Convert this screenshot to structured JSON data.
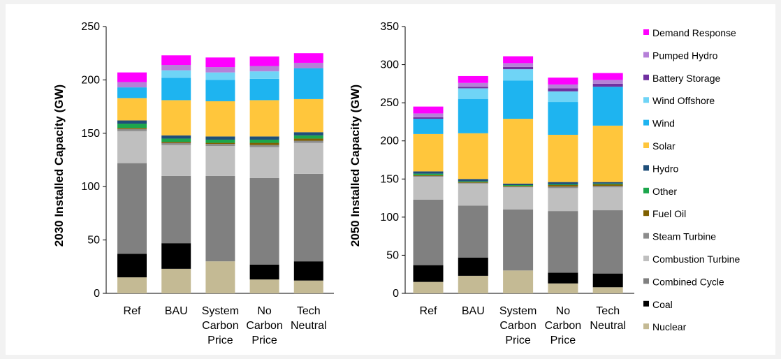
{
  "legend": {
    "placement": "right",
    "items": [
      {
        "name": "Demand Response",
        "color": "#ff00ff"
      },
      {
        "name": "Pumped Hydro",
        "color": "#b680d8"
      },
      {
        "name": "Battery Storage",
        "color": "#7030a0"
      },
      {
        "name": "Wind Offshore",
        "color": "#6fd4f6"
      },
      {
        "name": "Wind",
        "color": "#1eb4f0"
      },
      {
        "name": "Solar",
        "color": "#ffc63c"
      },
      {
        "name": "Hydro",
        "color": "#1f4e79"
      },
      {
        "name": "Other",
        "color": "#1ca64c"
      },
      {
        "name": "Fuel Oil",
        "color": "#7f6000"
      },
      {
        "name": "Steam Turbine",
        "color": "#8c8c8c"
      },
      {
        "name": "Combustion Turbine",
        "color": "#bfbfbf"
      },
      {
        "name": "Combined Cycle",
        "color": "#808080"
      },
      {
        "name": "Coal",
        "color": "#000000"
      },
      {
        "name": "Nuclear",
        "color": "#c4ba94"
      }
    ]
  },
  "chart_data": [
    {
      "type": "bar",
      "stacked": true,
      "ylabel": "2030 Installed Capacity (GW)",
      "ylim": [
        0,
        250
      ],
      "yticks": [
        0,
        50,
        100,
        150,
        200,
        250
      ],
      "grid": false,
      "categories": [
        [
          "Ref"
        ],
        [
          "BAU"
        ],
        [
          "System",
          "Carbon",
          "Price"
        ],
        [
          "No",
          "Carbon",
          "Price"
        ],
        [
          "Tech",
          "Neutral"
        ]
      ],
      "series": [
        {
          "name": "Nuclear",
          "values": [
            15,
            23,
            30,
            13,
            12
          ]
        },
        {
          "name": "Coal",
          "values": [
            22,
            24,
            0,
            14,
            18
          ]
        },
        {
          "name": "Combined Cycle",
          "values": [
            85,
            63,
            80,
            81,
            82
          ]
        },
        {
          "name": "Combustion Turbine",
          "values": [
            30,
            29,
            28,
            29,
            29
          ]
        },
        {
          "name": "Steam Turbine",
          "values": [
            2,
            2,
            2,
            2,
            2
          ]
        },
        {
          "name": "Fuel Oil",
          "values": [
            1,
            1,
            1,
            2,
            2
          ]
        },
        {
          "name": "Other",
          "values": [
            4,
            3,
            3,
            3,
            3
          ]
        },
        {
          "name": "Hydro",
          "values": [
            3,
            3,
            3,
            3,
            3
          ]
        },
        {
          "name": "Solar",
          "values": [
            21,
            33,
            33,
            34,
            31
          ]
        },
        {
          "name": "Wind",
          "values": [
            10,
            21,
            20,
            20,
            29
          ]
        },
        {
          "name": "Wind Offshore",
          "values": [
            0,
            7,
            7,
            7,
            0
          ]
        },
        {
          "name": "Battery Storage",
          "values": [
            0,
            0,
            0,
            0,
            0
          ]
        },
        {
          "name": "Pumped Hydro",
          "values": [
            5,
            5,
            5,
            5,
            5
          ]
        },
        {
          "name": "Demand Response",
          "values": [
            9,
            9,
            9,
            9,
            9
          ]
        }
      ]
    },
    {
      "type": "bar",
      "stacked": true,
      "ylabel": "2050 Installed Capacity (GW)",
      "ylim": [
        0,
        350
      ],
      "yticks": [
        0,
        50,
        100,
        150,
        200,
        250,
        300,
        350
      ],
      "grid": false,
      "categories": [
        [
          "Ref"
        ],
        [
          "BAU"
        ],
        [
          "System",
          "Carbon",
          "Price"
        ],
        [
          "No",
          "Carbon",
          "Price"
        ],
        [
          "Tech",
          "Neutral"
        ]
      ],
      "series": [
        {
          "name": "Nuclear",
          "values": [
            15,
            23,
            30,
            13,
            8
          ]
        },
        {
          "name": "Coal",
          "values": [
            22,
            24,
            0,
            14,
            18
          ]
        },
        {
          "name": "Combined Cycle",
          "values": [
            86,
            68,
            80,
            81,
            83
          ]
        },
        {
          "name": "Combustion Turbine",
          "values": [
            30,
            29,
            29,
            30,
            30
          ]
        },
        {
          "name": "Steam Turbine",
          "values": [
            1,
            1,
            1,
            2,
            2
          ]
        },
        {
          "name": "Fuel Oil",
          "values": [
            1,
            1,
            1,
            2,
            2
          ]
        },
        {
          "name": "Other",
          "values": [
            2,
            1,
            1,
            1,
            1
          ]
        },
        {
          "name": "Hydro",
          "values": [
            3,
            3,
            2,
            3,
            2
          ]
        },
        {
          "name": "Solar",
          "values": [
            49,
            60,
            85,
            62,
            74
          ]
        },
        {
          "name": "Wind",
          "values": [
            20,
            45,
            50,
            43,
            51
          ]
        },
        {
          "name": "Wind Offshore",
          "values": [
            0,
            14,
            15,
            14,
            0
          ]
        },
        {
          "name": "Battery Storage",
          "values": [
            2,
            2,
            3,
            4,
            4
          ]
        },
        {
          "name": "Pumped Hydro",
          "values": [
            5,
            5,
            5,
            5,
            5
          ]
        },
        {
          "name": "Demand Response",
          "values": [
            9,
            9,
            9,
            9,
            9
          ]
        }
      ]
    }
  ]
}
